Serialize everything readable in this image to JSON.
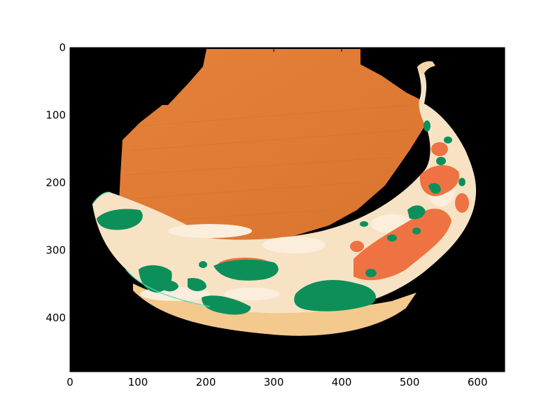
{
  "figure": {
    "background": "#ffffff",
    "plot_background": "#000000",
    "x_ticks": [
      "0",
      "100",
      "200",
      "300",
      "400",
      "500",
      "600"
    ],
    "y_ticks": [
      "0",
      "100",
      "200",
      "300",
      "400"
    ],
    "x_range": [
      0,
      640
    ],
    "y_range": [
      0,
      480
    ],
    "y_inverted": true
  },
  "image": {
    "content": "pseudo-colored banana photo",
    "colors": {
      "board": "#e07a35",
      "peel_light": "#f7e3c4",
      "peel_cream": "#fbeedd",
      "peel_shadow": "#f3c98e",
      "spot_green": "#0d8f5a",
      "spot_orange": "#ef7242",
      "edge_cyan": "#4fe0c4"
    }
  }
}
